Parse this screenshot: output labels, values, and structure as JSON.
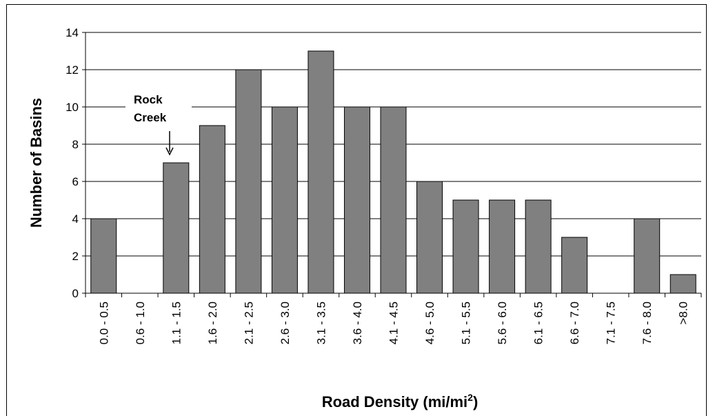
{
  "chart_data": {
    "type": "bar",
    "categories": [
      "0.0 - 0.5",
      "0.6 - 1.0",
      "1.1 - 1.5",
      "1.6 - 2.0",
      "2.1 - 2.5",
      "2.6 - 3.0",
      "3.1 - 3.5",
      "3.6 - 4.0",
      "4.1 - 4.5",
      "4.6 - 5.0",
      "5.1 - 5.5",
      "5.6 - 6.0",
      "6.1 - 6.5",
      "6.6 - 7.0",
      "7.1 - 7.5",
      "7.6 - 8.0",
      ">8.0"
    ],
    "values": [
      4,
      0,
      7,
      9,
      12,
      10,
      13,
      10,
      10,
      6,
      5,
      5,
      5,
      3,
      0,
      4,
      1
    ],
    "ylabel": "Number of Basins",
    "xlabel_main": "Road Density (mi/mi",
    "xlabel_sup": "2",
    "xlabel_end": ")",
    "ylim": [
      0,
      14
    ],
    "yticks": [
      0,
      2,
      4,
      6,
      8,
      10,
      12,
      14
    ],
    "grid": true,
    "bar_color": "#808080",
    "annotation": {
      "lines": [
        "Rock",
        "Creek"
      ],
      "target_category": "1.1 - 1.5"
    }
  }
}
